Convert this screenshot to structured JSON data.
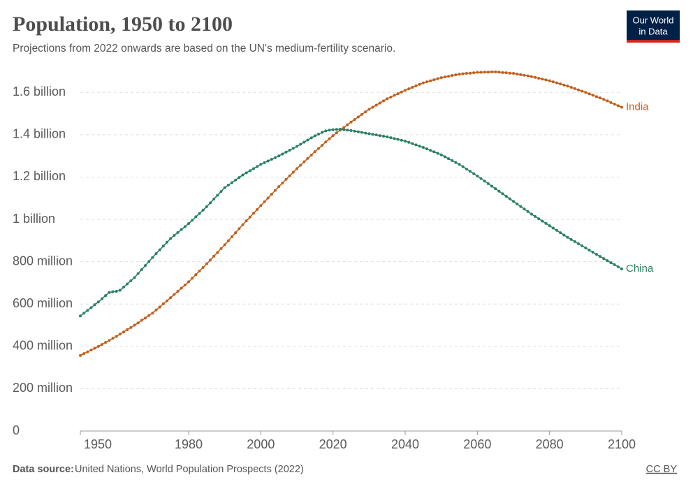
{
  "chart_data": {
    "type": "line",
    "title": "Population, 1950 to 2100",
    "subtitle": "Projections from 2022 onwards are based on the UN's medium-fertility scenario.",
    "source_label": "Data source:",
    "source": "United Nations, World Population Prospects (2022)",
    "license": "CC BY",
    "logo": [
      "Our World",
      "in Data"
    ],
    "xlim": [
      1950,
      2100
    ],
    "xticks": [
      1950,
      1980,
      2000,
      2020,
      2040,
      2060,
      2080,
      2100
    ],
    "ylim": [
      0,
      1.7
    ],
    "yticks": [
      0,
      {
        "value": 0.2,
        "label": "200 million"
      },
      {
        "value": 0.4,
        "label": "400 million"
      },
      {
        "value": 0.6,
        "label": "600 million"
      },
      {
        "value": 0.8,
        "label": "800 million"
      },
      {
        "value": 1,
        "label": "1 billion"
      },
      {
        "value": 1.2,
        "label": "1.2 billion"
      },
      {
        "value": 1.4,
        "label": "1.4 billion"
      },
      {
        "value": 1.6,
        "label": "1.6 billion"
      }
    ],
    "grid": true,
    "legend": "line-end",
    "x": [
      1950,
      1951,
      1952,
      1953,
      1954,
      1955,
      1956,
      1957,
      1958,
      1959,
      1960,
      1961,
      1962,
      1963,
      1964,
      1965,
      1966,
      1967,
      1968,
      1969,
      1970,
      1971,
      1972,
      1973,
      1974,
      1975,
      1976,
      1977,
      1978,
      1979,
      1980,
      1981,
      1982,
      1983,
      1984,
      1985,
      1986,
      1987,
      1988,
      1989,
      1990,
      1991,
      1992,
      1993,
      1994,
      1995,
      1996,
      1997,
      1998,
      1999,
      2000,
      2001,
      2002,
      2003,
      2004,
      2005,
      2006,
      2007,
      2008,
      2009,
      2010,
      2011,
      2012,
      2013,
      2014,
      2015,
      2016,
      2017,
      2018,
      2019,
      2020,
      2021,
      2022,
      2023,
      2024,
      2025,
      2026,
      2027,
      2028,
      2029,
      2030,
      2031,
      2032,
      2033,
      2034,
      2035,
      2036,
      2037,
      2038,
      2039,
      2040,
      2041,
      2042,
      2043,
      2044,
      2045,
      2046,
      2047,
      2048,
      2049,
      2050,
      2051,
      2052,
      2053,
      2054,
      2055,
      2056,
      2057,
      2058,
      2059,
      2060,
      2061,
      2062,
      2063,
      2064,
      2065,
      2066,
      2067,
      2068,
      2069,
      2070,
      2071,
      2072,
      2073,
      2074,
      2075,
      2076,
      2077,
      2078,
      2079,
      2080,
      2081,
      2082,
      2083,
      2084,
      2085,
      2086,
      2087,
      2088,
      2089,
      2090,
      2091,
      2092,
      2093,
      2094,
      2095,
      2096,
      2097,
      2098,
      2099,
      2100
    ],
    "series": [
      {
        "name": "India",
        "color": "#c15f1e",
        "values": [
          0.357,
          0.366,
          0.374,
          0.383,
          0.391,
          0.4,
          0.409,
          0.419,
          0.428,
          0.438,
          0.447,
          0.458,
          0.468,
          0.479,
          0.489,
          0.5,
          0.511,
          0.523,
          0.534,
          0.546,
          0.557,
          0.572,
          0.586,
          0.601,
          0.615,
          0.63,
          0.645,
          0.66,
          0.675,
          0.69,
          0.705,
          0.722,
          0.739,
          0.756,
          0.773,
          0.79,
          0.808,
          0.826,
          0.844,
          0.862,
          0.88,
          0.899,
          0.918,
          0.937,
          0.956,
          0.975,
          0.993,
          1.011,
          1.029,
          1.047,
          1.065,
          1.083,
          1.101,
          1.119,
          1.137,
          1.155,
          1.172,
          1.189,
          1.206,
          1.223,
          1.24,
          1.256,
          1.272,
          1.288,
          1.304,
          1.32,
          1.335,
          1.35,
          1.366,
          1.381,
          1.396,
          1.409,
          1.422,
          1.434,
          1.447,
          1.46,
          1.472,
          1.484,
          1.496,
          1.508,
          1.52,
          1.53,
          1.54,
          1.55,
          1.56,
          1.57,
          1.578,
          1.586,
          1.594,
          1.602,
          1.61,
          1.617,
          1.624,
          1.631,
          1.638,
          1.645,
          1.65,
          1.655,
          1.66,
          1.665,
          1.67,
          1.673,
          1.676,
          1.68,
          1.683,
          1.686,
          1.688,
          1.69,
          1.691,
          1.693,
          1.695,
          1.695,
          1.696,
          1.696,
          1.697,
          1.697,
          1.696,
          1.694,
          1.693,
          1.691,
          1.69,
          1.687,
          1.684,
          1.681,
          1.678,
          1.675,
          1.671,
          1.667,
          1.663,
          1.659,
          1.655,
          1.65,
          1.645,
          1.64,
          1.635,
          1.63,
          1.624,
          1.618,
          1.612,
          1.606,
          1.6,
          1.593,
          1.587,
          1.58,
          1.574,
          1.567,
          1.56,
          1.552,
          1.545,
          1.537,
          1.53
        ]
      },
      {
        "name": "China",
        "color": "#2a8163",
        "values": [
          0.544,
          0.557,
          0.57,
          0.583,
          0.597,
          0.61,
          0.625,
          0.64,
          0.655,
          0.658,
          0.66,
          0.665,
          0.68,
          0.695,
          0.71,
          0.725,
          0.744,
          0.763,
          0.782,
          0.801,
          0.82,
          0.838,
          0.856,
          0.874,
          0.892,
          0.91,
          0.924,
          0.938,
          0.952,
          0.966,
          0.98,
          0.996,
          1.012,
          1.028,
          1.044,
          1.06,
          1.078,
          1.096,
          1.114,
          1.132,
          1.15,
          1.162,
          1.174,
          1.186,
          1.198,
          1.21,
          1.22,
          1.23,
          1.24,
          1.25,
          1.26,
          1.268,
          1.276,
          1.284,
          1.292,
          1.3,
          1.309,
          1.318,
          1.327,
          1.336,
          1.345,
          1.355,
          1.365,
          1.375,
          1.385,
          1.395,
          1.403,
          1.411,
          1.418,
          1.422,
          1.424,
          1.425,
          1.426,
          1.424,
          1.422,
          1.42,
          1.417,
          1.414,
          1.411,
          1.408,
          1.405,
          1.402,
          1.399,
          1.396,
          1.393,
          1.39,
          1.386,
          1.382,
          1.378,
          1.374,
          1.37,
          1.364,
          1.358,
          1.352,
          1.346,
          1.34,
          1.333,
          1.326,
          1.319,
          1.312,
          1.305,
          1.296,
          1.287,
          1.278,
          1.269,
          1.26,
          1.249,
          1.238,
          1.227,
          1.216,
          1.205,
          1.193,
          1.181,
          1.169,
          1.157,
          1.145,
          1.133,
          1.121,
          1.109,
          1.097,
          1.085,
          1.073,
          1.061,
          1.049,
          1.037,
          1.025,
          1.014,
          1.003,
          0.992,
          0.981,
          0.97,
          0.959,
          0.948,
          0.937,
          0.926,
          0.915,
          0.905,
          0.895,
          0.885,
          0.875,
          0.865,
          0.855,
          0.845,
          0.835,
          0.825,
          0.815,
          0.805,
          0.795,
          0.786,
          0.776,
          0.766
        ]
      }
    ]
  }
}
